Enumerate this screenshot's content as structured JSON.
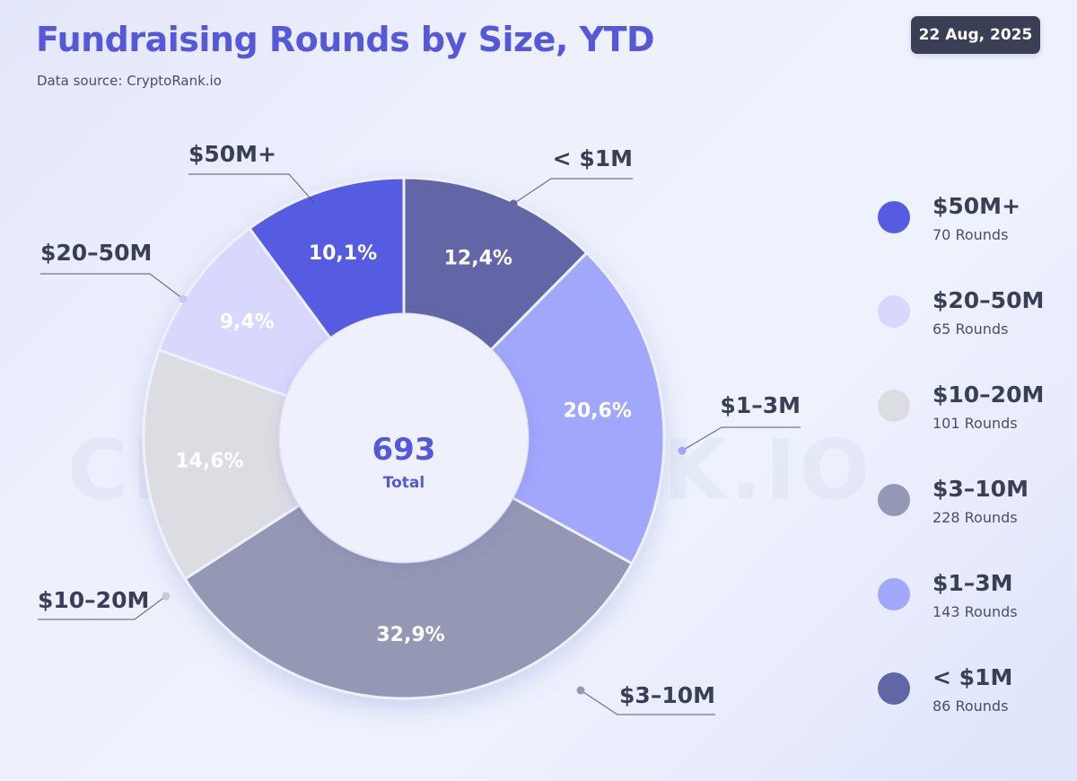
{
  "header": {
    "title": "Fundraising Rounds by Size, YTD",
    "source": "Data source: CryptoRank.io",
    "date": "22 Aug, 2025"
  },
  "watermark": "CRYPTORANK.IO",
  "chart_data": {
    "type": "pie",
    "subtype": "donut",
    "title": "Fundraising Rounds by Size, YTD",
    "center": {
      "value": "693",
      "label": "Total"
    },
    "slices": [
      {
        "label": "< $1M",
        "percent": 12.4,
        "percent_label": "12,4%",
        "rounds": 86,
        "rounds_label": "86 Rounds",
        "color": "#6266a6",
        "text_color": "#ffffff"
      },
      {
        "label": "$1–3M",
        "percent": 20.6,
        "percent_label": "20,6%",
        "rounds": 143,
        "rounds_label": "143 Rounds",
        "color": "#a1a7fb",
        "text_color": "#ffffff"
      },
      {
        "label": "$3–10M",
        "percent": 32.9,
        "percent_label": "32,9%",
        "rounds": 228,
        "rounds_label": "228 Rounds",
        "color": "#9498b4",
        "text_color": "#ffffff"
      },
      {
        "label": "$10–20M",
        "percent": 14.6,
        "percent_label": "14,6%",
        "rounds": 101,
        "rounds_label": "101 Rounds",
        "color": "#dcdde2",
        "text_color": "#ffffff"
      },
      {
        "label": "$20–50M",
        "percent": 9.4,
        "percent_label": "9,4%",
        "rounds": 65,
        "rounds_label": "65 Rounds",
        "color": "#d8d7fd",
        "text_color": "#ffffff"
      },
      {
        "label": "$50M+",
        "percent": 10.1,
        "percent_label": "10,1%",
        "rounds": 70,
        "rounds_label": "70 Rounds",
        "color": "#565ce2",
        "text_color": "#ffffff"
      }
    ],
    "legend_order": [
      "$50M+",
      "$20–50M",
      "$10–20M",
      "$3–10M",
      "$1–3M",
      "< $1M"
    ]
  }
}
